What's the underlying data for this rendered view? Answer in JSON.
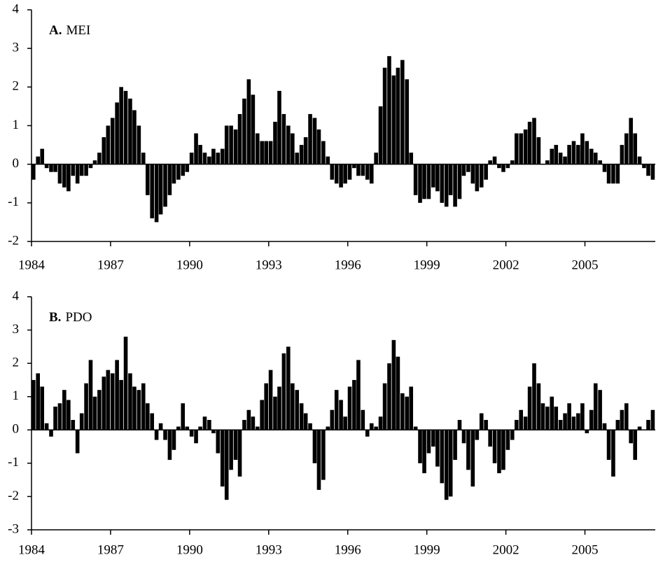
{
  "chart_data": [
    {
      "type": "bar",
      "panel": "A.",
      "title": "MEI",
      "color": "#000000",
      "xlim": [
        1984,
        2007.67
      ],
      "ylim": [
        -2,
        4
      ],
      "xticks": [
        1984,
        1987,
        1990,
        1993,
        1996,
        1999,
        2002,
        2005
      ],
      "yticks": [
        -2,
        -1,
        0,
        1,
        2,
        3,
        4
      ],
      "x": [
        1984,
        1984.17,
        1984.33,
        1984.5,
        1984.67,
        1984.83,
        1985,
        1985.17,
        1985.33,
        1985.5,
        1985.67,
        1985.83,
        1986,
        1986.17,
        1986.33,
        1986.5,
        1986.67,
        1986.83,
        1987,
        1987.17,
        1987.33,
        1987.5,
        1987.67,
        1987.83,
        1988,
        1988.17,
        1988.33,
        1988.5,
        1988.67,
        1988.83,
        1989,
        1989.17,
        1989.33,
        1989.5,
        1989.67,
        1989.83,
        1990,
        1990.17,
        1990.33,
        1990.5,
        1990.67,
        1990.83,
        1991,
        1991.17,
        1991.33,
        1991.5,
        1991.67,
        1991.83,
        1992,
        1992.17,
        1992.33,
        1992.5,
        1992.67,
        1992.83,
        1993,
        1993.17,
        1993.33,
        1993.5,
        1993.67,
        1993.83,
        1994,
        1994.17,
        1994.33,
        1994.5,
        1994.67,
        1994.83,
        1995,
        1995.17,
        1995.33,
        1995.5,
        1995.67,
        1995.83,
        1996,
        1996.17,
        1996.33,
        1996.5,
        1996.67,
        1996.83,
        1997,
        1997.17,
        1997.33,
        1997.5,
        1997.67,
        1997.83,
        1998,
        1998.17,
        1998.33,
        1998.5,
        1998.67,
        1998.83,
        1999,
        1999.17,
        1999.33,
        1999.5,
        1999.67,
        1999.83,
        2000,
        2000.17,
        2000.33,
        2000.5,
        2000.67,
        2000.83,
        2001,
        2001.17,
        2001.33,
        2001.5,
        2001.67,
        2001.83,
        2002,
        2002.17,
        2002.33,
        2002.5,
        2002.67,
        2002.83,
        2003,
        2003.17,
        2003.33,
        2003.5,
        2003.67,
        2003.83,
        2004,
        2004.17,
        2004.33,
        2004.5,
        2004.67,
        2004.83,
        2005,
        2005.17,
        2005.33,
        2005.5,
        2005.67,
        2005.83,
        2006,
        2006.17,
        2006.33,
        2006.5,
        2006.67,
        2006.83,
        2007,
        2007.17,
        2007.33,
        2007.5
      ],
      "values": [
        -0.4,
        0.2,
        0.4,
        -0.1,
        -0.2,
        -0.2,
        -0.5,
        -0.6,
        -0.7,
        -0.3,
        -0.5,
        -0.3,
        -0.3,
        -0.1,
        0.1,
        0.3,
        0.7,
        1.0,
        1.2,
        1.6,
        2.0,
        1.9,
        1.7,
        1.4,
        1.0,
        0.3,
        -0.8,
        -1.4,
        -1.5,
        -1.3,
        -1.1,
        -0.8,
        -0.5,
        -0.4,
        -0.3,
        -0.2,
        0.3,
        0.8,
        0.5,
        0.3,
        0.2,
        0.4,
        0.3,
        0.4,
        1.0,
        1.0,
        0.9,
        1.3,
        1.7,
        2.2,
        1.8,
        0.8,
        0.6,
        0.6,
        0.6,
        1.1,
        1.9,
        1.3,
        1.0,
        0.8,
        0.3,
        0.5,
        0.7,
        1.3,
        1.2,
        0.9,
        0.6,
        0.2,
        -0.4,
        -0.5,
        -0.6,
        -0.5,
        -0.4,
        -0.1,
        -0.3,
        -0.3,
        -0.4,
        -0.5,
        0.3,
        1.5,
        2.5,
        2.8,
        2.3,
        2.5,
        2.7,
        2.2,
        0.3,
        -0.8,
        -1.0,
        -0.9,
        -0.9,
        -0.6,
        -0.7,
        -1.0,
        -1.1,
        -0.8,
        -1.1,
        -0.9,
        -0.3,
        -0.2,
        -0.5,
        -0.7,
        -0.6,
        -0.4,
        0.1,
        0.2,
        -0.1,
        -0.2,
        -0.1,
        0.1,
        0.8,
        0.8,
        0.9,
        1.1,
        1.2,
        0.7,
        0.0,
        0.1,
        0.4,
        0.5,
        0.3,
        0.2,
        0.5,
        0.6,
        0.5,
        0.8,
        0.6,
        0.4,
        0.3,
        0.1,
        -0.2,
        -0.5,
        -0.5,
        -0.5,
        0.5,
        0.8,
        1.2,
        0.8,
        0.2,
        -0.1,
        -0.3,
        -0.4
      ]
    },
    {
      "type": "bar",
      "panel": "B.",
      "title": "PDO",
      "color": "#000000",
      "xlim": [
        1984,
        2007.67
      ],
      "ylim": [
        -3,
        4
      ],
      "xticks": [
        1984,
        1987,
        1990,
        1993,
        1996,
        1999,
        2002,
        2005
      ],
      "yticks": [
        -3,
        -2,
        -1,
        0,
        1,
        2,
        3,
        4
      ],
      "x": [
        1984,
        1984.17,
        1984.33,
        1984.5,
        1984.67,
        1984.83,
        1985,
        1985.17,
        1985.33,
        1985.5,
        1985.67,
        1985.83,
        1986,
        1986.17,
        1986.33,
        1986.5,
        1986.67,
        1986.83,
        1987,
        1987.17,
        1987.33,
        1987.5,
        1987.67,
        1987.83,
        1988,
        1988.17,
        1988.33,
        1988.5,
        1988.67,
        1988.83,
        1989,
        1989.17,
        1989.33,
        1989.5,
        1989.67,
        1989.83,
        1990,
        1990.17,
        1990.33,
        1990.5,
        1990.67,
        1990.83,
        1991,
        1991.17,
        1991.33,
        1991.5,
        1991.67,
        1991.83,
        1992,
        1992.17,
        1992.33,
        1992.5,
        1992.67,
        1992.83,
        1993,
        1993.17,
        1993.33,
        1993.5,
        1993.67,
        1993.83,
        1994,
        1994.17,
        1994.33,
        1994.5,
        1994.67,
        1994.83,
        1995,
        1995.17,
        1995.33,
        1995.5,
        1995.67,
        1995.83,
        1996,
        1996.17,
        1996.33,
        1996.5,
        1996.67,
        1996.83,
        1997,
        1997.17,
        1997.33,
        1997.5,
        1997.67,
        1997.83,
        1998,
        1998.17,
        1998.33,
        1998.5,
        1998.67,
        1998.83,
        1999,
        1999.17,
        1999.33,
        1999.5,
        1999.67,
        1999.83,
        2000,
        2000.17,
        2000.33,
        2000.5,
        2000.67,
        2000.83,
        2001,
        2001.17,
        2001.33,
        2001.5,
        2001.67,
        2001.83,
        2002,
        2002.17,
        2002.33,
        2002.5,
        2002.67,
        2002.83,
        2003,
        2003.17,
        2003.33,
        2003.5,
        2003.67,
        2003.83,
        2004,
        2004.17,
        2004.33,
        2004.5,
        2004.67,
        2004.83,
        2005,
        2005.17,
        2005.33,
        2005.5,
        2005.67,
        2005.83,
        2006,
        2006.17,
        2006.33,
        2006.5,
        2006.67,
        2006.83,
        2007,
        2007.17,
        2007.33,
        2007.5
      ],
      "values": [
        1.5,
        1.7,
        1.3,
        0.2,
        -0.2,
        0.7,
        0.8,
        1.2,
        0.9,
        0.3,
        -0.7,
        0.5,
        1.4,
        2.1,
        1.0,
        1.2,
        1.6,
        1.8,
        1.7,
        2.1,
        1.5,
        2.8,
        1.7,
        1.3,
        1.2,
        1.4,
        0.8,
        0.5,
        -0.3,
        0.2,
        -0.3,
        -0.9,
        -0.6,
        0.1,
        0.8,
        0.1,
        -0.2,
        -0.4,
        0.1,
        0.4,
        0.3,
        -0.1,
        -0.7,
        -1.7,
        -2.1,
        -1.2,
        -0.9,
        -1.4,
        0.3,
        0.6,
        0.4,
        0.1,
        0.9,
        1.4,
        1.8,
        1.0,
        1.3,
        2.3,
        2.5,
        1.4,
        1.2,
        0.8,
        0.5,
        0.2,
        -1.0,
        -1.8,
        -1.5,
        0.1,
        0.6,
        1.2,
        0.9,
        0.4,
        1.3,
        1.5,
        2.1,
        0.6,
        -0.2,
        0.2,
        0.1,
        0.4,
        1.4,
        2.0,
        2.7,
        2.2,
        1.1,
        1.0,
        1.3,
        0.1,
        -1.0,
        -1.3,
        -0.7,
        -0.5,
        -1.1,
        -1.6,
        -2.1,
        -2.0,
        -0.9,
        0.3,
        -0.4,
        -1.2,
        -1.7,
        -0.3,
        0.5,
        0.3,
        -0.5,
        -1.0,
        -1.3,
        -1.2,
        -0.6,
        -0.3,
        0.3,
        0.6,
        0.4,
        1.3,
        2.0,
        1.4,
        0.8,
        0.7,
        1.0,
        0.7,
        0.3,
        0.5,
        0.8,
        0.4,
        0.5,
        0.8,
        -0.1,
        0.6,
        1.4,
        1.2,
        0.2,
        -0.9,
        -1.4,
        0.3,
        0.6,
        0.8,
        -0.4,
        -0.9,
        0.1,
        0.0,
        0.3,
        0.6
      ]
    }
  ]
}
